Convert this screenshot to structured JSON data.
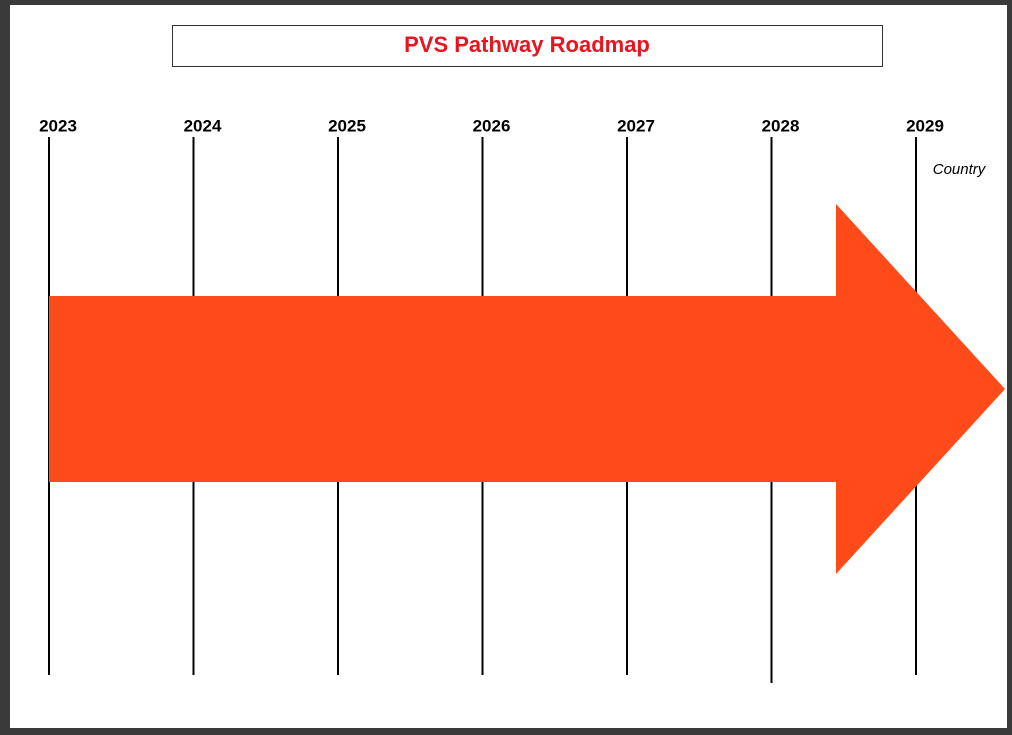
{
  "title": "PVS Pathway Roadmap",
  "years": [
    "2023",
    "2024",
    "2025",
    "2026",
    "2027",
    "2028",
    "2029"
  ],
  "label": "Country"
}
